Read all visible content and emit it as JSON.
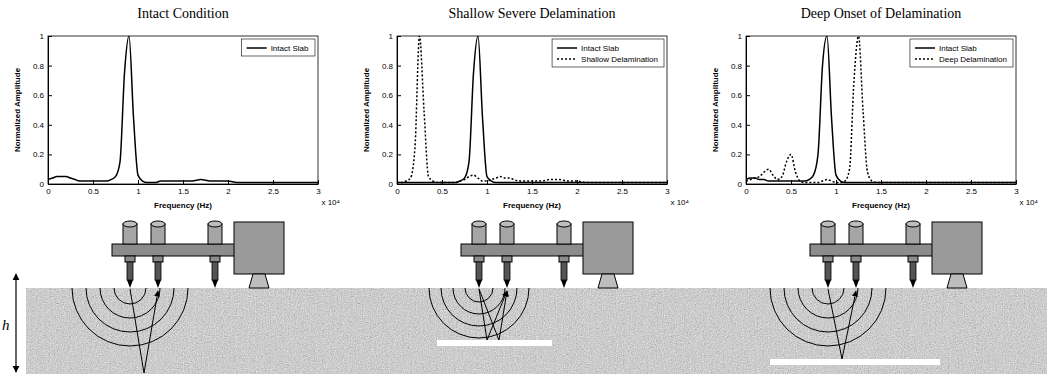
{
  "chart_data": [
    {
      "type": "line",
      "title": "Intact Condition",
      "x_label": "Frequency (Hz)",
      "y_label": "Normalized Amplitude",
      "x_scale_label": "x 10⁴",
      "x": [
        0,
        0.05,
        0.1,
        0.15,
        0.2,
        0.25,
        0.3,
        0.35,
        0.4,
        0.45,
        0.5,
        0.55,
        0.6,
        0.65,
        0.7,
        0.75,
        0.8,
        0.85,
        0.9,
        0.95,
        1,
        1.05,
        1.1,
        1.15,
        1.2,
        1.25,
        1.3,
        1.35,
        1.4,
        1.45,
        1.5,
        1.6,
        1.7,
        1.8,
        1.9,
        2,
        2.1,
        2.2,
        2.3,
        2.4,
        2.5,
        2.6,
        2.7,
        2.8,
        2.9,
        3
      ],
      "xlim": [
        0,
        3
      ],
      "ylim": [
        0,
        1
      ],
      "xticks": [
        0,
        0.5,
        1,
        1.5,
        2,
        2.5,
        3
      ],
      "yticks": [
        0,
        0.2,
        0.4,
        0.6,
        0.8,
        1
      ],
      "legend": "upper right",
      "series": [
        {
          "name": "Intact Slab",
          "color": "#000000",
          "line_style": "solid",
          "values": [
            0.03,
            0.04,
            0.05,
            0.05,
            0.05,
            0.04,
            0.03,
            0.02,
            0.02,
            0.02,
            0.02,
            0.02,
            0.02,
            0.02,
            0.03,
            0.05,
            0.15,
            0.75,
            1,
            0.45,
            0.06,
            0.02,
            0.01,
            0.01,
            0.01,
            0.02,
            0.02,
            0.02,
            0.02,
            0.02,
            0.02,
            0.02,
            0.03,
            0.02,
            0.02,
            0.02,
            0.01,
            0.01,
            0.01,
            0.01,
            0.01,
            0.01,
            0.01,
            0.01,
            0.01,
            0.01
          ]
        }
      ]
    },
    {
      "type": "line",
      "title": "Shallow Severe Delamination",
      "x_label": "Frequency (Hz)",
      "y_label": "Normalized Amplitude",
      "x_scale_label": "x 10⁴",
      "x": [
        0,
        0.05,
        0.1,
        0.15,
        0.2,
        0.25,
        0.3,
        0.35,
        0.4,
        0.45,
        0.5,
        0.55,
        0.6,
        0.65,
        0.7,
        0.75,
        0.8,
        0.85,
        0.9,
        0.95,
        1,
        1.05,
        1.1,
        1.15,
        1.2,
        1.25,
        1.3,
        1.35,
        1.4,
        1.45,
        1.5,
        1.6,
        1.7,
        1.8,
        1.9,
        2,
        2.1,
        2.2,
        2.3,
        2.4,
        2.5,
        2.6,
        2.7,
        2.8,
        2.9,
        3
      ],
      "xlim": [
        0,
        3
      ],
      "ylim": [
        0,
        1
      ],
      "xticks": [
        0,
        0.5,
        1,
        1.5,
        2,
        2.5,
        3
      ],
      "yticks": [
        0,
        0.2,
        0.4,
        0.6,
        0.8,
        1
      ],
      "legend": "upper right",
      "series": [
        {
          "name": "Intact Slab",
          "color": "#000000",
          "line_style": "solid",
          "values": [
            0.01,
            0.01,
            0.01,
            0.01,
            0.01,
            0.01,
            0.01,
            0.01,
            0.01,
            0.01,
            0.01,
            0.01,
            0.01,
            0.01,
            0.02,
            0.04,
            0.15,
            0.75,
            1,
            0.45,
            0.05,
            0.02,
            0.01,
            0.01,
            0.01,
            0.01,
            0.01,
            0.01,
            0.01,
            0.01,
            0.01,
            0.01,
            0.01,
            0.01,
            0.01,
            0.01,
            0.01,
            0.01,
            0.01,
            0.01,
            0.01,
            0.01,
            0.01,
            0.01,
            0.01,
            0.01
          ]
        },
        {
          "name": "Shallow Delamination",
          "color": "#000000",
          "line_style": "dotted",
          "values": [
            0.01,
            0.01,
            0.02,
            0.04,
            0.25,
            1,
            0.5,
            0.05,
            0.02,
            0.01,
            0.01,
            0.01,
            0.01,
            0.01,
            0.02,
            0.03,
            0.05,
            0.06,
            0.04,
            0.02,
            0.02,
            0.03,
            0.04,
            0.05,
            0.04,
            0.04,
            0.03,
            0.02,
            0.02,
            0.02,
            0.02,
            0.02,
            0.03,
            0.03,
            0.02,
            0.02,
            0.01,
            0.01,
            0.01,
            0.01,
            0.01,
            0.01,
            0.01,
            0.01,
            0.01,
            0.01
          ]
        }
      ]
    },
    {
      "type": "line",
      "title": "Deep Onset of Delamination",
      "x_label": "Frequency (Hz)",
      "y_label": "Normalized Amplitude",
      "x_scale_label": "x 10⁴",
      "x": [
        0,
        0.05,
        0.1,
        0.15,
        0.2,
        0.25,
        0.3,
        0.35,
        0.4,
        0.45,
        0.5,
        0.55,
        0.6,
        0.65,
        0.7,
        0.75,
        0.8,
        0.85,
        0.9,
        0.95,
        1,
        1.05,
        1.1,
        1.15,
        1.2,
        1.25,
        1.3,
        1.35,
        1.4,
        1.45,
        1.5,
        1.6,
        1.7,
        1.8,
        1.9,
        2,
        2.1,
        2.2,
        2.3,
        2.4,
        2.5,
        2.6,
        2.7,
        2.8,
        2.9,
        3
      ],
      "xlim": [
        0,
        3
      ],
      "ylim": [
        0,
        1
      ],
      "xticks": [
        0,
        0.5,
        1,
        1.5,
        2,
        2.5,
        3
      ],
      "yticks": [
        0,
        0.2,
        0.4,
        0.6,
        0.8,
        1
      ],
      "legend": "upper right",
      "series": [
        {
          "name": "Intact Slab",
          "color": "#000000",
          "line_style": "solid",
          "values": [
            0.03,
            0.04,
            0.04,
            0.03,
            0.03,
            0.02,
            0.02,
            0.02,
            0.02,
            0.02,
            0.02,
            0.02,
            0.02,
            0.02,
            0.03,
            0.06,
            0.2,
            0.8,
            1,
            0.45,
            0.06,
            0.02,
            0.01,
            0.01,
            0.01,
            0.01,
            0.01,
            0.01,
            0.01,
            0.01,
            0.01,
            0.01,
            0.01,
            0.01,
            0.01,
            0.01,
            0.01,
            0.01,
            0.01,
            0.01,
            0.01,
            0.01,
            0.01,
            0.01,
            0.01,
            0.01
          ]
        },
        {
          "name": "Deep Delamination",
          "color": "#000000",
          "line_style": "dotted",
          "values": [
            0.02,
            0.03,
            0.04,
            0.05,
            0.08,
            0.1,
            0.06,
            0.03,
            0.05,
            0.15,
            0.2,
            0.08,
            0.02,
            0.01,
            0.01,
            0.01,
            0.01,
            0.02,
            0.03,
            0.02,
            0.01,
            0.01,
            0.02,
            0.1,
            0.7,
            1,
            0.5,
            0.08,
            0.02,
            0.01,
            0.01,
            0.01,
            0.01,
            0.01,
            0.01,
            0.01,
            0.01,
            0.01,
            0.01,
            0.01,
            0.01,
            0.01,
            0.01,
            0.01,
            0.01,
            0.01
          ]
        }
      ]
    }
  ],
  "diagram": {
    "thickness_label": "h"
  }
}
